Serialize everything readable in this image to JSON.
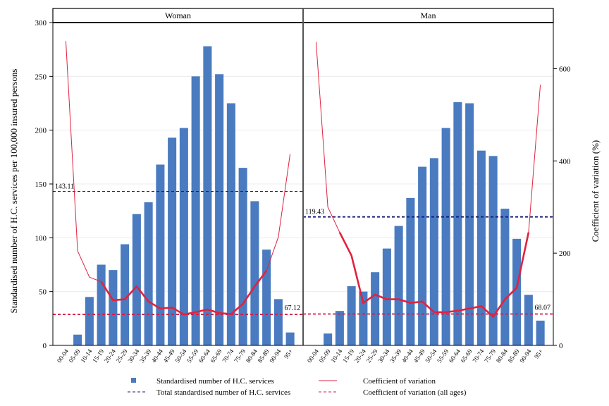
{
  "colors": {
    "bar": "#4a7bc0",
    "cv_line": "#e0223f",
    "total_line": "#1a1a7a",
    "cv_all_line": "#d01f4a",
    "strip_border": "#000000",
    "divider": "#555555"
  },
  "chart_data": {
    "type": "bar",
    "ylabel": "Standardised number of H.C. services per 100,000 insured persons",
    "y2label": "Coefficient of variation (%)",
    "ylim": [
      0,
      300
    ],
    "y2lim": [
      0,
      700
    ],
    "yticks": [
      "0",
      "50",
      "100",
      "150",
      "200",
      "250",
      "300"
    ],
    "y2ticks": [
      "0",
      "200",
      "400",
      "600"
    ],
    "categories": [
      "00-04",
      "05-09",
      "10-14",
      "15-19",
      "20-24",
      "25-29",
      "30-34",
      "35-39",
      "40-44",
      "45-49",
      "50-54",
      "55-59",
      "60-64",
      "65-69",
      "70-74",
      "75-79",
      "80-84",
      "85-89",
      "90-94",
      "95+"
    ],
    "grid": true,
    "legend_position": "bottom",
    "legend": {
      "bars": "Standardised number of H.C. services",
      "cv": "Coefficient of variation",
      "total": "Total standardised number of H.C. services",
      "cv_all": "Coefficient of variation (all ages)"
    },
    "panels": [
      {
        "name": "Woman",
        "values": [
          0,
          10,
          45,
          75,
          70,
          94,
          122,
          133,
          168,
          193,
          202,
          250,
          278,
          252,
          225,
          165,
          134,
          89,
          43,
          12
        ],
        "cv": [
          660,
          205,
          148,
          138,
          98,
          100,
          128,
          95,
          80,
          82,
          67,
          72,
          78,
          70,
          68,
          90,
          128,
          162,
          235,
          415
        ],
        "cv_thick_from": 3,
        "cv_thick_to": 17,
        "total": 143.11,
        "total_label": "143.11",
        "cv_all": 67.12,
        "cv_all_label": "67.12"
      },
      {
        "name": "Man",
        "values": [
          0,
          11,
          32,
          55,
          50,
          68,
          90,
          111,
          137,
          166,
          174,
          202,
          226,
          225,
          181,
          176,
          127,
          99,
          47,
          23
        ],
        "cv": [
          658,
          300,
          245,
          195,
          92,
          110,
          100,
          100,
          92,
          95,
          72,
          72,
          75,
          80,
          85,
          62,
          100,
          125,
          245,
          565
        ],
        "cv_thick_from": 2,
        "cv_thick_to": 18,
        "total": 119.43,
        "total_label": "119.43",
        "cv_all": 68.07,
        "cv_all_label": "68.07"
      }
    ]
  }
}
